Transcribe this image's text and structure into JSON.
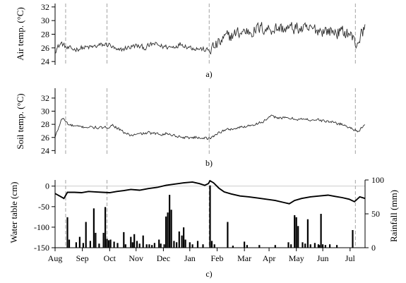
{
  "chart_data": [
    {
      "type": "line",
      "panel_label": "a)",
      "ylabel": "Air temp. (°C)",
      "ylim": [
        23.5,
        32.5
      ],
      "yticks": [
        24,
        26,
        28,
        30,
        32
      ],
      "xlim_days": [
        0,
        352
      ],
      "markers_days": [
        12,
        59,
        175,
        341
      ],
      "control_points": [
        {
          "day": 0,
          "value": 25.6
        },
        {
          "day": 7,
          "value": 26.7
        },
        {
          "day": 14,
          "value": 25.9
        },
        {
          "day": 22,
          "value": 25.8
        },
        {
          "day": 31,
          "value": 26.0
        },
        {
          "day": 42,
          "value": 26.1
        },
        {
          "day": 52,
          "value": 26.4
        },
        {
          "day": 61,
          "value": 26.5
        },
        {
          "day": 71,
          "value": 25.5
        },
        {
          "day": 81,
          "value": 26.0
        },
        {
          "day": 92,
          "value": 26.3
        },
        {
          "day": 102,
          "value": 26.0
        },
        {
          "day": 112,
          "value": 26.6
        },
        {
          "day": 122,
          "value": 26.2
        },
        {
          "day": 133,
          "value": 26.1
        },
        {
          "day": 143,
          "value": 26.6
        },
        {
          "day": 153,
          "value": 26.1
        },
        {
          "day": 163,
          "value": 25.9
        },
        {
          "day": 174,
          "value": 25.6
        },
        {
          "day": 184,
          "value": 26.4
        },
        {
          "day": 194,
          "value": 27.5
        },
        {
          "day": 204,
          "value": 28.0
        },
        {
          "day": 214,
          "value": 28.4
        },
        {
          "day": 224,
          "value": 28.5
        },
        {
          "day": 234,
          "value": 28.9
        },
        {
          "day": 244,
          "value": 28.8
        },
        {
          "day": 254,
          "value": 28.9
        },
        {
          "day": 264,
          "value": 28.8
        },
        {
          "day": 274,
          "value": 28.9
        },
        {
          "day": 284,
          "value": 28.6
        },
        {
          "day": 294,
          "value": 28.7
        },
        {
          "day": 304,
          "value": 28.6
        },
        {
          "day": 314,
          "value": 28.4
        },
        {
          "day": 324,
          "value": 28.3
        },
        {
          "day": 334,
          "value": 28.2
        },
        {
          "day": 342,
          "value": 26.5
        },
        {
          "day": 352,
          "value": 29.0
        }
      ],
      "noise_amplitude_early": 0.55,
      "noise_amplitude_late": 1.35
    },
    {
      "type": "line",
      "panel_label": "b)",
      "ylabel": "Soil temp. (°C)",
      "ylim": [
        23.5,
        33.5
      ],
      "yticks": [
        24,
        26,
        28,
        30,
        32
      ],
      "xlim_days": [
        0,
        352
      ],
      "markers_days": [
        12,
        59,
        175,
        341
      ],
      "control_points": [
        {
          "day": 0,
          "value": 26.0
        },
        {
          "day": 8,
          "value": 29.0
        },
        {
          "day": 16,
          "value": 27.9
        },
        {
          "day": 26,
          "value": 27.6
        },
        {
          "day": 36,
          "value": 27.6
        },
        {
          "day": 46,
          "value": 27.5
        },
        {
          "day": 56,
          "value": 27.4
        },
        {
          "day": 66,
          "value": 27.9
        },
        {
          "day": 76,
          "value": 26.9
        },
        {
          "day": 86,
          "value": 26.3
        },
        {
          "day": 96,
          "value": 26.5
        },
        {
          "day": 106,
          "value": 26.7
        },
        {
          "day": 116,
          "value": 26.5
        },
        {
          "day": 126,
          "value": 26.6
        },
        {
          "day": 136,
          "value": 26.3
        },
        {
          "day": 146,
          "value": 26.0
        },
        {
          "day": 156,
          "value": 26.0
        },
        {
          "day": 166,
          "value": 26.0
        },
        {
          "day": 176,
          "value": 25.8
        },
        {
          "day": 186,
          "value": 26.8
        },
        {
          "day": 196,
          "value": 27.2
        },
        {
          "day": 206,
          "value": 27.4
        },
        {
          "day": 216,
          "value": 27.7
        },
        {
          "day": 226,
          "value": 28.0
        },
        {
          "day": 236,
          "value": 28.4
        },
        {
          "day": 246,
          "value": 29.2
        },
        {
          "day": 256,
          "value": 29.0
        },
        {
          "day": 266,
          "value": 28.9
        },
        {
          "day": 276,
          "value": 28.8
        },
        {
          "day": 286,
          "value": 28.7
        },
        {
          "day": 296,
          "value": 28.7
        },
        {
          "day": 306,
          "value": 28.5
        },
        {
          "day": 316,
          "value": 28.3
        },
        {
          "day": 326,
          "value": 28.0
        },
        {
          "day": 336,
          "value": 27.4
        },
        {
          "day": 344,
          "value": 27.0
        },
        {
          "day": 352,
          "value": 27.8
        }
      ],
      "noise_amplitude_early": 0.3,
      "noise_amplitude_late": 0.3
    },
    {
      "type": "line+bar",
      "panel_label": "c)",
      "ylabel_left": "Water table (cm)",
      "ylabel_right": "Rainfall (mm)",
      "ylim_left": [
        -150,
        15
      ],
      "yticks_left": [
        0,
        -50,
        -100,
        -150
      ],
      "ylim_right": [
        0,
        100
      ],
      "yticks_right": [
        0,
        50,
        100
      ],
      "xlim_days": [
        0,
        352
      ],
      "x_tick_days": [
        0,
        31,
        62,
        92,
        123,
        153,
        184,
        215,
        243,
        274,
        304,
        335
      ],
      "x_tick_labels": [
        "Aug",
        "Sep",
        "Oct",
        "Nov",
        "Dec",
        "Jan",
        "Feb",
        "Mar",
        "Apr",
        "May",
        "Jun",
        "Jul"
      ],
      "markers_days": [
        12,
        59,
        175,
        341
      ],
      "zero_line": true,
      "water_table": [
        {
          "day": 0,
          "value": -18
        },
        {
          "day": 6,
          "value": -25
        },
        {
          "day": 10,
          "value": -30
        },
        {
          "day": 14,
          "value": -15
        },
        {
          "day": 22,
          "value": -15
        },
        {
          "day": 30,
          "value": -16
        },
        {
          "day": 38,
          "value": -13
        },
        {
          "day": 46,
          "value": -14
        },
        {
          "day": 54,
          "value": -15
        },
        {
          "day": 62,
          "value": -16
        },
        {
          "day": 70,
          "value": -13
        },
        {
          "day": 78,
          "value": -11
        },
        {
          "day": 86,
          "value": -8
        },
        {
          "day": 96,
          "value": -10
        },
        {
          "day": 106,
          "value": -6
        },
        {
          "day": 116,
          "value": -3
        },
        {
          "day": 126,
          "value": 2
        },
        {
          "day": 136,
          "value": 5
        },
        {
          "day": 146,
          "value": 8
        },
        {
          "day": 156,
          "value": 10
        },
        {
          "day": 164,
          "value": 6
        },
        {
          "day": 170,
          "value": 2
        },
        {
          "day": 174,
          "value": 6
        },
        {
          "day": 176,
          "value": 13
        },
        {
          "day": 180,
          "value": 8
        },
        {
          "day": 186,
          "value": -5
        },
        {
          "day": 192,
          "value": -14
        },
        {
          "day": 200,
          "value": -19
        },
        {
          "day": 210,
          "value": -24
        },
        {
          "day": 220,
          "value": -26
        },
        {
          "day": 230,
          "value": -29
        },
        {
          "day": 240,
          "value": -32
        },
        {
          "day": 250,
          "value": -35
        },
        {
          "day": 260,
          "value": -40
        },
        {
          "day": 266,
          "value": -43
        },
        {
          "day": 272,
          "value": -35
        },
        {
          "day": 280,
          "value": -30
        },
        {
          "day": 290,
          "value": -26
        },
        {
          "day": 300,
          "value": -24
        },
        {
          "day": 310,
          "value": -22
        },
        {
          "day": 318,
          "value": -25
        },
        {
          "day": 326,
          "value": -28
        },
        {
          "day": 334,
          "value": -32
        },
        {
          "day": 340,
          "value": -38
        },
        {
          "day": 346,
          "value": -26
        },
        {
          "day": 352,
          "value": -30
        }
      ],
      "rainfall": [
        {
          "day": 14,
          "value": 45
        },
        {
          "day": 16,
          "value": 12
        },
        {
          "day": 24,
          "value": 8
        },
        {
          "day": 28,
          "value": 16
        },
        {
          "day": 32,
          "value": 7
        },
        {
          "day": 35,
          "value": 38
        },
        {
          "day": 40,
          "value": 10
        },
        {
          "day": 44,
          "value": 58
        },
        {
          "day": 46,
          "value": 22
        },
        {
          "day": 50,
          "value": 6
        },
        {
          "day": 55,
          "value": 22
        },
        {
          "day": 57,
          "value": 60
        },
        {
          "day": 59,
          "value": 13
        },
        {
          "day": 61,
          "value": 11
        },
        {
          "day": 63,
          "value": 12
        },
        {
          "day": 67,
          "value": 9
        },
        {
          "day": 71,
          "value": 7
        },
        {
          "day": 78,
          "value": 23
        },
        {
          "day": 80,
          "value": 5
        },
        {
          "day": 86,
          "value": 16
        },
        {
          "day": 88,
          "value": 8
        },
        {
          "day": 90,
          "value": 20
        },
        {
          "day": 93,
          "value": 10
        },
        {
          "day": 96,
          "value": 6
        },
        {
          "day": 100,
          "value": 18
        },
        {
          "day": 104,
          "value": 5
        },
        {
          "day": 107,
          "value": 5
        },
        {
          "day": 110,
          "value": 4
        },
        {
          "day": 113,
          "value": 7
        },
        {
          "day": 118,
          "value": 12
        },
        {
          "day": 120,
          "value": 6
        },
        {
          "day": 124,
          "value": 5
        },
        {
          "day": 126,
          "value": 46
        },
        {
          "day": 128,
          "value": 52
        },
        {
          "day": 130,
          "value": 78
        },
        {
          "day": 132,
          "value": 56
        },
        {
          "day": 135,
          "value": 10
        },
        {
          "day": 138,
          "value": 8
        },
        {
          "day": 141,
          "value": 24
        },
        {
          "day": 144,
          "value": 18
        },
        {
          "day": 146,
          "value": 30
        },
        {
          "day": 148,
          "value": 12
        },
        {
          "day": 153,
          "value": 8
        },
        {
          "day": 156,
          "value": 5
        },
        {
          "day": 162,
          "value": 10
        },
        {
          "day": 168,
          "value": 5
        },
        {
          "day": 176,
          "value": 92
        },
        {
          "day": 178,
          "value": 10
        },
        {
          "day": 181,
          "value": 5
        },
        {
          "day": 196,
          "value": 38
        },
        {
          "day": 202,
          "value": 3
        },
        {
          "day": 215,
          "value": 9
        },
        {
          "day": 218,
          "value": 4
        },
        {
          "day": 232,
          "value": 4
        },
        {
          "day": 250,
          "value": 4
        },
        {
          "day": 265,
          "value": 8
        },
        {
          "day": 268,
          "value": 5
        },
        {
          "day": 272,
          "value": 48
        },
        {
          "day": 274,
          "value": 45
        },
        {
          "day": 276,
          "value": 32
        },
        {
          "day": 281,
          "value": 8
        },
        {
          "day": 284,
          "value": 6
        },
        {
          "day": 287,
          "value": 42
        },
        {
          "day": 290,
          "value": 5
        },
        {
          "day": 295,
          "value": 7
        },
        {
          "day": 299,
          "value": 5
        },
        {
          "day": 300,
          "value": 4
        },
        {
          "day": 302,
          "value": 50
        },
        {
          "day": 304,
          "value": 5
        },
        {
          "day": 307,
          "value": 4
        },
        {
          "day": 312,
          "value": 5
        },
        {
          "day": 320,
          "value": 4
        },
        {
          "day": 338,
          "value": 26
        }
      ]
    }
  ]
}
